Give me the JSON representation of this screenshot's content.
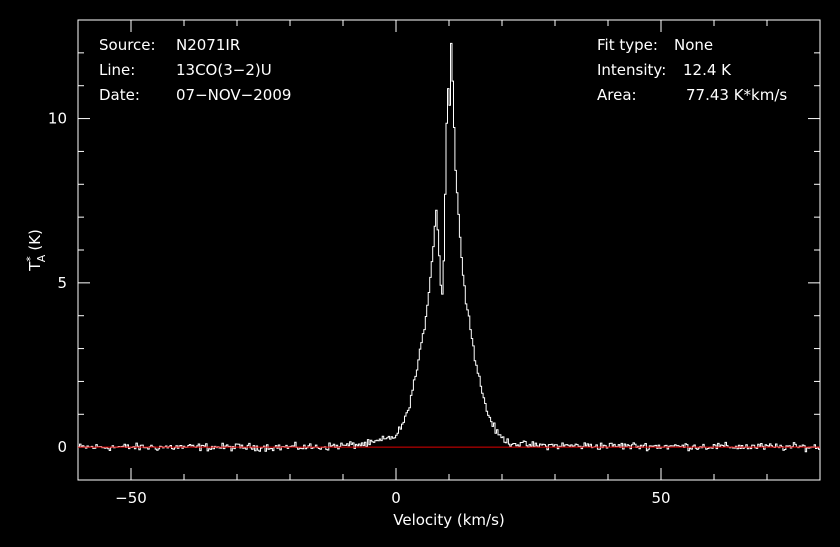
{
  "info": {
    "source_label": "Source:",
    "source_value": "N2071IR",
    "line_label": "Line:",
    "line_value": "13CO(3−2)U",
    "date_label": "Date:",
    "date_value": "07−NOV−2009",
    "fit_label": "Fit type:",
    "fit_value": "None",
    "intensity_label": "Intensity:",
    "intensity_value": "12.4 K",
    "area_label": "Area:",
    "area_value": "77.43 K*km/s"
  },
  "chart_data": {
    "type": "line",
    "xlabel": "Velocity (km/s)",
    "ylabel_main": "T",
    "ylabel_sup": "*",
    "ylabel_sub": "A",
    "ylabel_unit": "(K)",
    "xlim": [
      -60,
      80
    ],
    "ylim": [
      -1.0,
      13.0
    ],
    "x_ticks": [
      -50,
      0,
      50
    ],
    "x_tick_labels": [
      "−50",
      "0",
      "50"
    ],
    "y_ticks": [
      0,
      5,
      10
    ],
    "y_tick_labels": [
      "0",
      "5",
      "10"
    ],
    "baseline": 0,
    "colors": {
      "spectrum": "#ffffff",
      "baseline": "#e00000",
      "frame": "#ffffff"
    },
    "series": [
      {
        "x": [
          -60,
          -15,
          -10,
          -5,
          0,
          2,
          4,
          5,
          6,
          7,
          7.5,
          8,
          8.5,
          8.8,
          9.2,
          9.6,
          10,
          10.3,
          10.6,
          11,
          12,
          13,
          15,
          17,
          19,
          21,
          25,
          80
        ],
        "values": [
          0,
          0,
          0.05,
          0.1,
          0.35,
          1.0,
          2.5,
          3.4,
          4.6,
          6.3,
          7.3,
          6.0,
          4.3,
          5.2,
          8.0,
          11.2,
          10.4,
          12.4,
          11.0,
          8.8,
          6.2,
          4.6,
          2.5,
          1.1,
          0.4,
          0.15,
          0.05,
          0
        ]
      }
    ]
  }
}
